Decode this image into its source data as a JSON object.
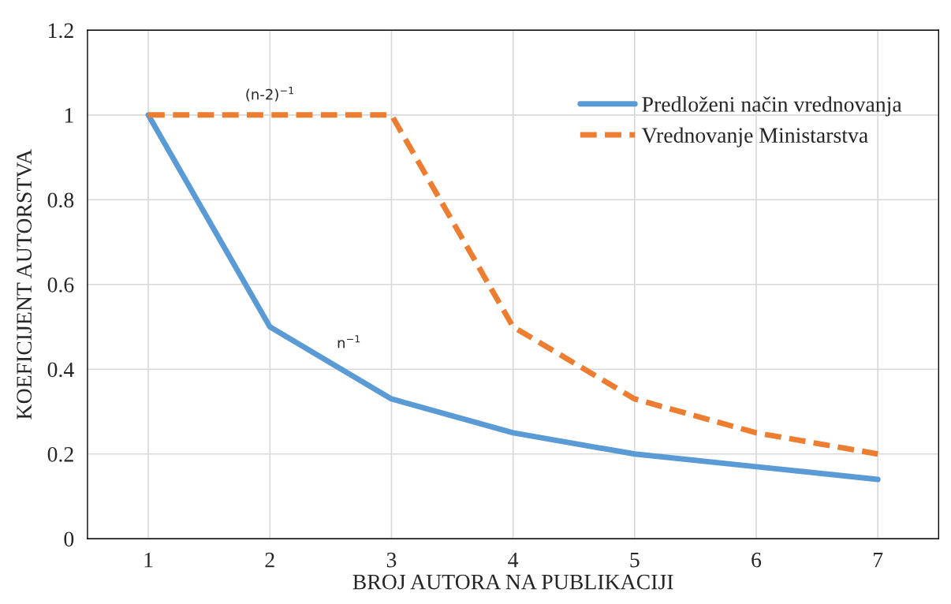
{
  "chart_data": {
    "type": "line",
    "xlabel": "BROJ AUTORA NA PUBLIKACIJI",
    "ylabel": "KOEFICIJENT AUTORSTVA",
    "categories": [
      "1",
      "2",
      "3",
      "4",
      "5",
      "6",
      "7"
    ],
    "series": [
      {
        "name": "Predloženi način vrednovanja",
        "color": "#5b9bd5",
        "values": [
          1,
          0.5,
          0.33,
          0.25,
          0.2,
          0.17,
          0.14
        ],
        "line_style": "solid"
      },
      {
        "name": "Vrednovanje Ministarstva",
        "color": "#ed7d31",
        "values": [
          1,
          1,
          1,
          0.5,
          0.33,
          0.25,
          0.2
        ],
        "line_style": "dashed"
      }
    ],
    "annotations": [
      {
        "text": "(n-2)$^{−1}$",
        "x": "2",
        "y": 1
      },
      "n$^{−1}$"
    ],
    "ylim": [
      0,
      1.2
    ],
    "yticks": [
      0,
      0.2,
      0.4,
      0.6,
      0.8,
      1,
      1.2
    ],
    "grid": true,
    "legend": "right",
    "marker": "none"
  }
}
